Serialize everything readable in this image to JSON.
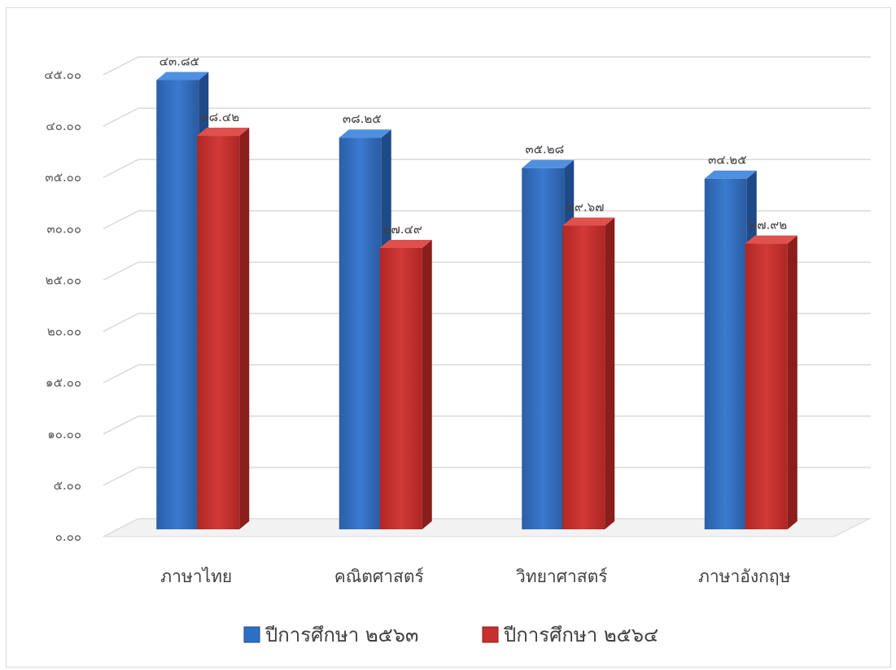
{
  "chart_data": {
    "type": "bar",
    "title": "",
    "xlabel": "",
    "ylabel": "",
    "categories": [
      "ภาษาไทย",
      "คณิตศาสตร์",
      "วิทยาศาสตร์",
      "ภาษาอังกฤษ"
    ],
    "series": [
      {
        "name": "ปีการศึกษา ๒๕๖๓",
        "values": [
          43.85,
          38.25,
          35.28,
          34.25
        ],
        "labels": [
          "๔๓.๘๕",
          "๓๘.๒๕",
          "๓๕.๒๘",
          "๓๔.๒๕"
        ],
        "color": "#2e6fc4"
      },
      {
        "name": "ปีการศึกษา ๒๕๖๔",
        "values": [
          38.42,
          27.49,
          29.67,
          27.92
        ],
        "labels": [
          "๓๘.๔๒",
          "๒๗.๔๙",
          "๒๙.๖๗",
          "๒๗.๙๒"
        ],
        "color": "#c8302e"
      }
    ],
    "ylim": [
      0,
      45
    ],
    "yticks": [
      "๐.๐๐",
      "๕.๐๐",
      "๑๐.๐๐",
      "๑๕.๐๐",
      "๒๐.๐๐",
      "๒๕.๐๐",
      "๓๐.๐๐",
      "๓๕.๐๐",
      "๔๐.๐๐",
      "๔๕.๐๐"
    ],
    "grid": true,
    "legend_position": "bottom",
    "style": "3d-column"
  }
}
